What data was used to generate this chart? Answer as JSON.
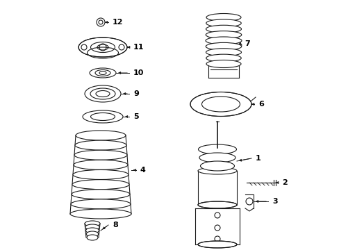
{
  "bg_color": "#ffffff",
  "line_color": "#1a1a1a",
  "text_color": "#000000",
  "fig_w": 4.89,
  "fig_h": 3.6,
  "dpi": 100
}
